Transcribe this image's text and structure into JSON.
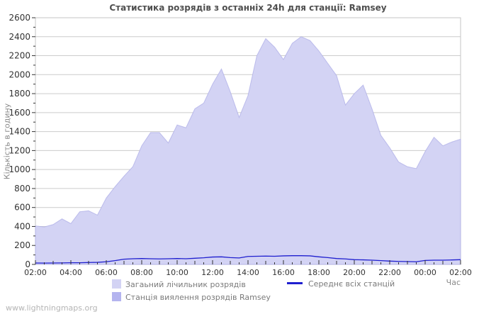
{
  "title": "Статистика розрядів з останніх 24h для станції: Ramsey",
  "watermark": "www.lightningmaps.org",
  "axes": {
    "y_label": "Кількість в годину",
    "x_label": "Час"
  },
  "legend": {
    "total_label": "Загаьний лічильник розрядів",
    "average_label": "Середнє всіх станцій",
    "ramsey_label": "Станція виялення розрядів Ramsey"
  },
  "colors": {
    "total_area": "#d3d3f4",
    "ramsey_area": "#b4b4ef",
    "average_line": "#1f1fcf",
    "gridline": "#cccccc",
    "plot_border": "#c6c6c6",
    "tick": "#333333",
    "tick_label": "#333333"
  },
  "chart_data": {
    "type": "area",
    "title": "Статистика розрядів з останніх 24h для станції: Ramsey",
    "xlabel": "Час",
    "ylabel": "Кількість в годину",
    "ylim": [
      0,
      2600
    ],
    "y_tick_step": 200,
    "y_minor_step": 100,
    "grid": "horizontal-only",
    "legend_position": "bottom",
    "x_tick_labels": [
      "02:00",
      "04:00",
      "06:00",
      "08:00",
      "10:00",
      "12:00",
      "14:00",
      "16:00",
      "18:00",
      "20:00",
      "22:00",
      "00:00",
      "02:00"
    ],
    "x": [
      "02:00",
      "02:30",
      "03:00",
      "03:30",
      "04:00",
      "04:30",
      "05:00",
      "05:30",
      "06:00",
      "06:30",
      "07:00",
      "07:30",
      "08:00",
      "08:30",
      "09:00",
      "09:30",
      "10:00",
      "10:30",
      "11:00",
      "11:30",
      "12:00",
      "12:30",
      "13:00",
      "13:30",
      "14:00",
      "14:30",
      "15:00",
      "15:30",
      "16:00",
      "16:30",
      "17:00",
      "17:30",
      "18:00",
      "18:30",
      "19:00",
      "19:30",
      "20:00",
      "20:30",
      "21:00",
      "21:30",
      "22:00",
      "22:30",
      "23:00",
      "23:30",
      "00:00",
      "00:30",
      "01:00",
      "01:30",
      "02:00"
    ],
    "series": [
      {
        "name": "Загаьний лічильник розрядів",
        "style": "area",
        "color": "#d3d3f4",
        "values": [
          405,
          395,
          420,
          480,
          430,
          555,
          565,
          520,
          700,
          820,
          930,
          1030,
          1250,
          1390,
          1390,
          1280,
          1470,
          1440,
          1640,
          1700,
          1900,
          2060,
          1820,
          1550,
          1780,
          2200,
          2380,
          2290,
          2160,
          2330,
          2400,
          2360,
          2250,
          2120,
          1990,
          1680,
          1800,
          1890,
          1640,
          1360,
          1230,
          1080,
          1030,
          1010,
          1190,
          1340,
          1250,
          1290,
          1320
        ]
      },
      {
        "name": "Станція виялення розрядів Ramsey",
        "style": "area",
        "color": "#b4b4ef",
        "values": [
          0,
          0,
          0,
          0,
          0,
          0,
          0,
          0,
          0,
          0,
          0,
          0,
          0,
          0,
          0,
          0,
          0,
          0,
          0,
          0,
          0,
          0,
          0,
          0,
          0,
          0,
          0,
          0,
          0,
          0,
          0,
          0,
          0,
          0,
          0,
          0,
          0,
          0,
          0,
          0,
          0,
          0,
          0,
          0,
          0,
          0,
          0,
          0,
          0
        ]
      },
      {
        "name": "Середнє всіх станцій",
        "style": "line",
        "color": "#1f1fcf",
        "values": [
          15,
          14,
          15,
          16,
          18,
          18,
          20,
          22,
          28,
          40,
          55,
          60,
          62,
          60,
          58,
          60,
          62,
          60,
          65,
          70,
          78,
          80,
          72,
          68,
          84,
          86,
          88,
          86,
          90,
          92,
          92,
          90,
          80,
          72,
          62,
          58,
          50,
          48,
          45,
          40,
          35,
          32,
          30,
          28,
          42,
          45,
          45,
          47,
          50
        ]
      }
    ]
  }
}
